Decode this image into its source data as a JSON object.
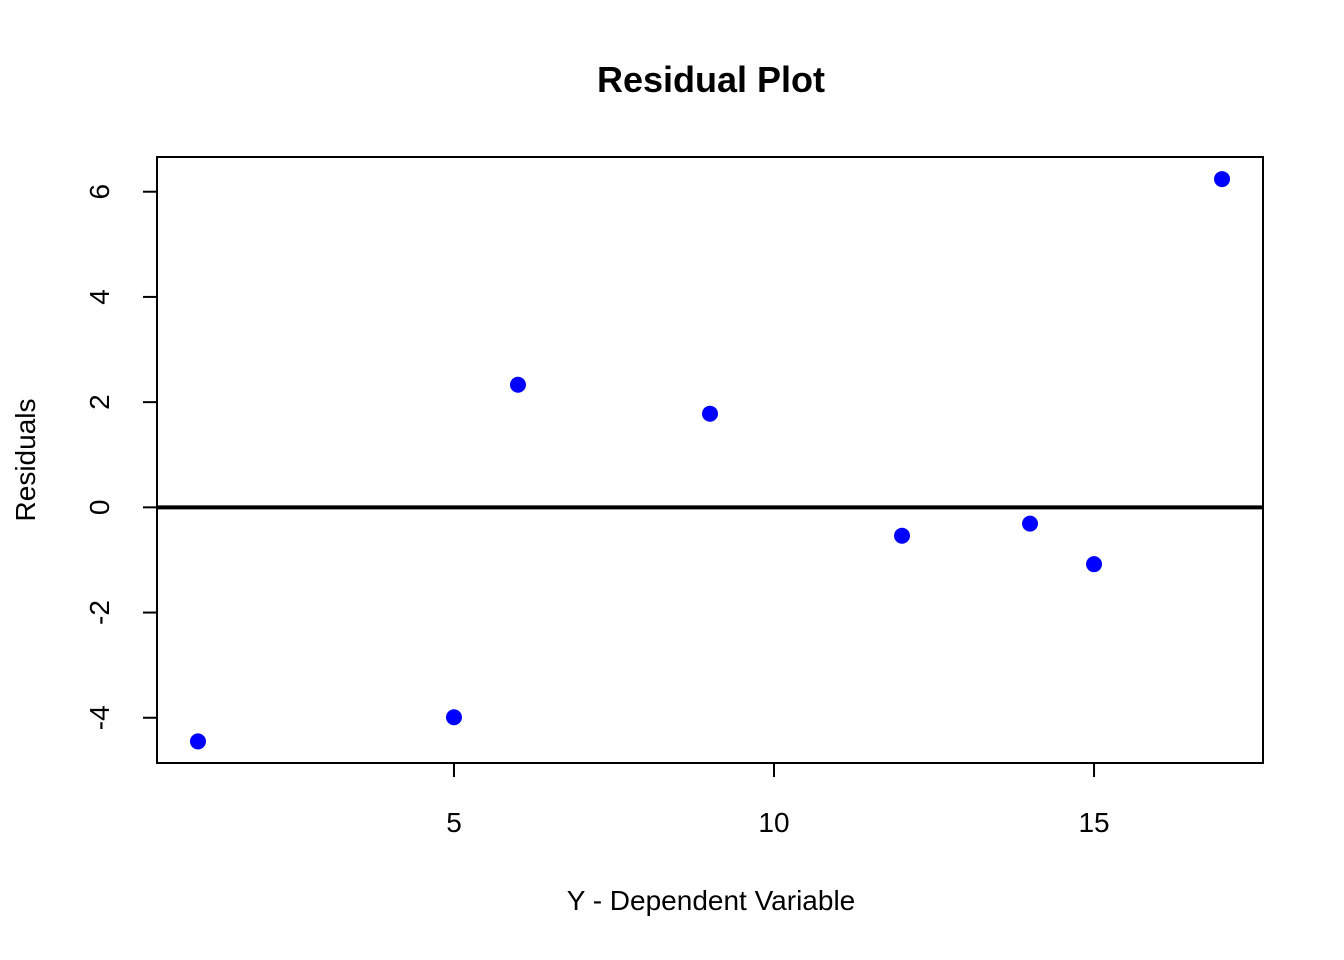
{
  "chart_data": {
    "type": "scatter",
    "title": "Residual Plot",
    "xlabel": "Y - Dependent Variable",
    "ylabel": "Residuals",
    "xlim": [
      0.36,
      17.64
    ],
    "ylim": [
      -4.86,
      6.66
    ],
    "x_ticks": [
      5,
      10,
      15
    ],
    "y_ticks": [
      -4,
      -2,
      0,
      2,
      4,
      6
    ],
    "reference_line": 0,
    "marker_color": "#0000ff",
    "grid": false,
    "legend": "none",
    "points": [
      {
        "x": 1,
        "y": -4.45
      },
      {
        "x": 5,
        "y": -3.99
      },
      {
        "x": 6,
        "y": 2.33
      },
      {
        "x": 9,
        "y": 1.78
      },
      {
        "x": 12,
        "y": -0.54
      },
      {
        "x": 14,
        "y": -0.31
      },
      {
        "x": 15,
        "y": -1.08
      },
      {
        "x": 17,
        "y": 6.24
      }
    ]
  }
}
